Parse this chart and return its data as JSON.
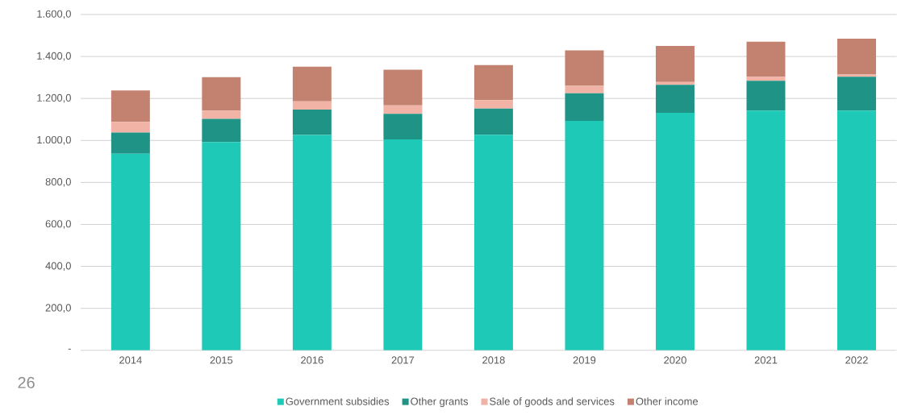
{
  "chart_data": {
    "type": "bar",
    "stacked": true,
    "categories": [
      "2014",
      "2015",
      "2016",
      "2017",
      "2018",
      "2019",
      "2020",
      "2021",
      "2022"
    ],
    "series": [
      {
        "name": "Government subsidies",
        "color": "#1fc9b8",
        "values": [
          937,
          992,
          1026,
          1005,
          1027,
          1093,
          1132,
          1142,
          1142
        ]
      },
      {
        "name": "Other grants",
        "color": "#1f9385",
        "values": [
          101,
          111,
          121,
          122,
          125,
          132,
          133,
          142,
          161
        ]
      },
      {
        "name": "Sale of goods and services",
        "color": "#f0b3a6",
        "values": [
          50,
          39,
          39,
          40,
          40,
          35,
          13,
          19,
          11
        ]
      },
      {
        "name": "Other income",
        "color": "#c3826f",
        "values": [
          150,
          159,
          165,
          170,
          167,
          169,
          172,
          167,
          171
        ]
      }
    ],
    "ylim": [
      0,
      1600
    ],
    "yticks": [
      {
        "value": 0,
        "label": "-"
      },
      {
        "value": 200,
        "label": "200,0"
      },
      {
        "value": 400,
        "label": "400,0"
      },
      {
        "value": 600,
        "label": "600,0"
      },
      {
        "value": 800,
        "label": "800,0"
      },
      {
        "value": 1000,
        "label": "1.000,0"
      },
      {
        "value": 1200,
        "label": "1.200,0"
      },
      {
        "value": 1400,
        "label": "1.400,0"
      },
      {
        "value": 1600,
        "label": "1.600,0"
      }
    ],
    "grid": "y",
    "legend": "bottom",
    "annotations": [
      "26"
    ]
  }
}
